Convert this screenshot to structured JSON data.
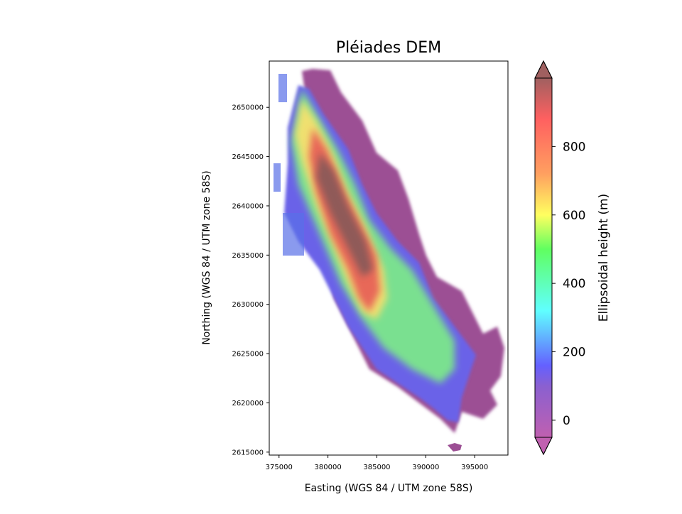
{
  "chart_data": {
    "type": "heatmap",
    "title": "Pléiades DEM",
    "xlabel": "Easting (WGS 84 / UTM zone 58S)",
    "ylabel": "Northing (WGS 84 / UTM zone 58S)",
    "xlim": [
      374000,
      398400
    ],
    "ylim": [
      2614700,
      2654700
    ],
    "xticks": [
      375000,
      380000,
      385000,
      390000,
      395000
    ],
    "xtick_labels": [
      "375000",
      "380000",
      "385000",
      "390000",
      "395000"
    ],
    "yticks": [
      2615000,
      2620000,
      2625000,
      2630000,
      2635000,
      2640000,
      2645000,
      2650000
    ],
    "ytick_labels": [
      "2615000",
      "2620000",
      "2625000",
      "2630000",
      "2635000",
      "2640000",
      "2645000",
      "2650000"
    ],
    "colorbar": {
      "label": "Ellipsoidal height (m)",
      "clim": [
        -50,
        1000
      ],
      "extend": "both",
      "ticks": [
        0,
        200,
        400,
        600,
        800
      ],
      "tick_labels": [
        "0",
        "200",
        "400",
        "600",
        "800"
      ],
      "colormap_stops": [
        {
          "value": -50,
          "color": "#c060b0"
        },
        {
          "value": 100,
          "color": "#8a60d0"
        },
        {
          "value": 160,
          "color": "#6460ff"
        },
        {
          "value": 320,
          "color": "#60ffff"
        },
        {
          "value": 500,
          "color": "#60ff60"
        },
        {
          "value": 600,
          "color": "#ffff60"
        },
        {
          "value": 720,
          "color": "#ffa060"
        },
        {
          "value": 880,
          "color": "#ff6060"
        },
        {
          "value": 1000,
          "color": "#a06060"
        }
      ]
    }
  }
}
